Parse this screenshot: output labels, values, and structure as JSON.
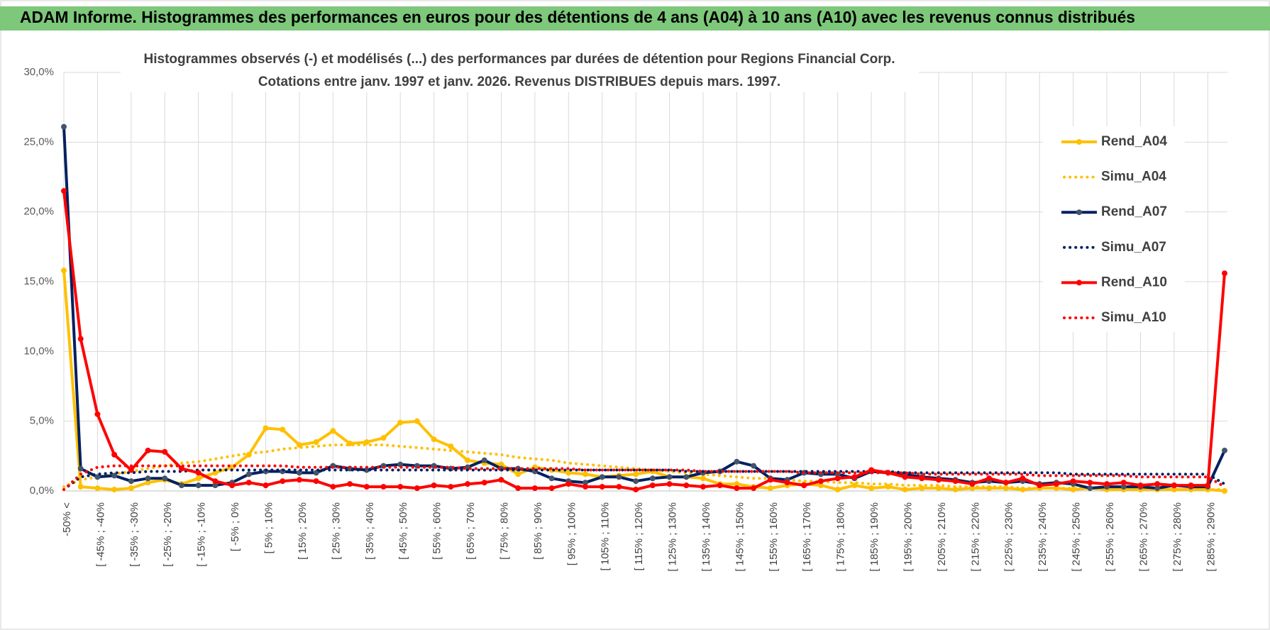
{
  "header": {
    "title": "ADAM Informe. Histogrammes des performances en euros pour des détentions de 4 ans (A04) à 10 ans (A10) avec les revenus connus distribués"
  },
  "chart_data": {
    "type": "line",
    "title": [
      "Histogrammes observés (-) et modélisés (...) des performances par durées de détention pour Regions Financial Corp.",
      "Cotations entre janv. 1997 et janv. 2026. Revenus DISTRIBUES depuis mars. 1997."
    ],
    "categories": [
      "-50% <",
      null,
      "[ -45% ; -40%",
      null,
      "[ -35% ; -30%",
      null,
      "[ -25% ; -20%",
      null,
      "[ -15% ; -10%",
      null,
      "[ -5% ; 0%",
      null,
      "[ 5% ; 10%",
      null,
      "[ 15% ; 20%",
      null,
      "[ 25% ; 30%",
      null,
      "[ 35% ; 40%",
      null,
      "[ 45% ; 50%",
      null,
      "[ 55% ; 60%",
      null,
      "[ 65% ; 70%",
      null,
      "[ 75% ; 80%",
      null,
      "[ 85% ; 90%",
      null,
      "[ 95% ; 100%",
      null,
      "[ 105% ; 110%",
      null,
      "[ 115% ; 120%",
      null,
      "[ 125% ; 130%",
      null,
      "[ 135% ; 140%",
      null,
      "[ 145% ; 150%",
      null,
      "[ 155% ; 160%",
      null,
      "[ 165% ; 170%",
      null,
      "[ 175% ; 180%",
      null,
      "[ 185% ; 190%",
      null,
      "[ 195% ; 200%",
      null,
      "[ 205% ; 210%",
      null,
      "[ 215% ; 220%",
      null,
      "[ 225% ; 230%",
      null,
      "[ 235% ; 240%",
      null,
      "[ 245% ; 250%",
      null,
      "[ 255% ; 260%",
      null,
      "[ 265% ; 270%",
      null,
      "[ 275% ; 280%",
      null,
      "[ 285% ; 290%",
      null
    ],
    "series": [
      {
        "name": "Rend_A04",
        "color": "#FFC000",
        "dash": "solid",
        "markers": true,
        "values": [
          15.8,
          0.3,
          0.2,
          0.1,
          0.2,
          0.6,
          0.8,
          0.5,
          0.9,
          1.3,
          1.7,
          2.6,
          4.5,
          4.4,
          3.3,
          3.5,
          4.3,
          3.4,
          3.5,
          3.8,
          4.9,
          5.0,
          3.7,
          3.2,
          2.2,
          2.0,
          1.9,
          1.2,
          1.7,
          1.5,
          1.3,
          1.2,
          1.0,
          1.1,
          1.2,
          1.4,
          1.0,
          1.0,
          0.9,
          0.5,
          0.5,
          0.3,
          0.2,
          0.4,
          0.5,
          0.4,
          0.1,
          0.4,
          0.2,
          0.3,
          0.1,
          0.2,
          0.2,
          0.1,
          0.2,
          0.2,
          0.2,
          0.1,
          0.2,
          0.2,
          0.1,
          0.2,
          0.1,
          0.1,
          0.1,
          0.1,
          0.1,
          0.1,
          0.1,
          0.0
        ]
      },
      {
        "name": "Simu_A04",
        "color": "#FFC000",
        "dash": "dotted",
        "markers": false,
        "values": [
          0.3,
          0.8,
          1.0,
          1.2,
          1.4,
          1.6,
          1.8,
          2.0,
          2.1,
          2.3,
          2.5,
          2.7,
          2.8,
          3.0,
          3.1,
          3.2,
          3.3,
          3.3,
          3.3,
          3.3,
          3.2,
          3.1,
          3.0,
          2.9,
          2.8,
          2.7,
          2.6,
          2.4,
          2.3,
          2.2,
          2.0,
          1.9,
          1.8,
          1.7,
          1.6,
          1.5,
          1.4,
          1.3,
          1.2,
          1.1,
          1.0,
          0.9,
          0.9,
          0.8,
          0.7,
          0.7,
          0.6,
          0.6,
          0.5,
          0.5,
          0.4,
          0.4,
          0.4,
          0.3,
          0.3,
          0.3,
          0.3,
          0.2,
          0.2,
          0.2,
          0.2,
          0.2,
          0.2,
          0.1,
          0.1,
          0.1,
          0.1,
          0.1,
          0.1,
          0.1
        ]
      },
      {
        "name": "Rend_A07",
        "color": "#002060",
        "dash": "solid",
        "markers": true,
        "marker_color": "#44546A",
        "values": [
          26.1,
          1.6,
          1.0,
          1.1,
          0.7,
          0.9,
          0.9,
          0.4,
          0.4,
          0.4,
          0.6,
          1.2,
          1.4,
          1.4,
          1.3,
          1.3,
          1.8,
          1.6,
          1.5,
          1.8,
          1.9,
          1.8,
          1.8,
          1.6,
          1.7,
          2.2,
          1.6,
          1.6,
          1.4,
          0.9,
          0.7,
          0.6,
          1.0,
          1.0,
          0.7,
          0.9,
          1.0,
          1.0,
          1.3,
          1.4,
          2.1,
          1.8,
          0.9,
          0.8,
          1.3,
          1.2,
          1.2,
          0.9,
          1.4,
          1.3,
          1.2,
          1.0,
          0.9,
          0.8,
          0.6,
          0.7,
          0.6,
          0.7,
          0.5,
          0.6,
          0.5,
          0.2,
          0.3,
          0.3,
          0.3,
          0.2,
          0.4,
          0.3,
          0.3,
          2.9
        ]
      },
      {
        "name": "Simu_A07",
        "color": "#002060",
        "dash": "dotted",
        "markers": false,
        "values": [
          0.1,
          1.0,
          1.2,
          1.3,
          1.3,
          1.4,
          1.4,
          1.4,
          1.5,
          1.5,
          1.5,
          1.5,
          1.5,
          1.5,
          1.5,
          1.5,
          1.5,
          1.5,
          1.5,
          1.5,
          1.5,
          1.5,
          1.5,
          1.5,
          1.5,
          1.5,
          1.5,
          1.5,
          1.5,
          1.5,
          1.5,
          1.5,
          1.5,
          1.5,
          1.5,
          1.5,
          1.5,
          1.4,
          1.4,
          1.4,
          1.4,
          1.4,
          1.4,
          1.4,
          1.4,
          1.4,
          1.4,
          1.4,
          1.4,
          1.4,
          1.3,
          1.3,
          1.3,
          1.3,
          1.3,
          1.3,
          1.3,
          1.3,
          1.3,
          1.3,
          1.2,
          1.2,
          1.2,
          1.2,
          1.2,
          1.2,
          1.2,
          1.2,
          1.2,
          0.5
        ]
      },
      {
        "name": "Rend_A10",
        "color": "#FF0000",
        "dash": "solid",
        "markers": true,
        "values": [
          21.5,
          10.9,
          5.5,
          2.6,
          1.5,
          2.9,
          2.8,
          1.6,
          1.3,
          0.7,
          0.4,
          0.6,
          0.4,
          0.7,
          0.8,
          0.7,
          0.3,
          0.5,
          0.3,
          0.3,
          0.3,
          0.2,
          0.4,
          0.3,
          0.5,
          0.6,
          0.8,
          0.2,
          0.2,
          0.2,
          0.5,
          0.3,
          0.3,
          0.3,
          0.1,
          0.4,
          0.5,
          0.4,
          0.3,
          0.4,
          0.2,
          0.2,
          0.8,
          0.6,
          0.4,
          0.7,
          0.9,
          1.0,
          1.5,
          1.3,
          1.0,
          0.9,
          0.8,
          0.7,
          0.5,
          0.9,
          0.6,
          0.9,
          0.4,
          0.5,
          0.7,
          0.6,
          0.5,
          0.6,
          0.4,
          0.5,
          0.4,
          0.4,
          0.4,
          15.6
        ]
      },
      {
        "name": "Simu_A10",
        "color": "#FF0000",
        "dash": "dotted",
        "markers": false,
        "values": [
          0.1,
          1.2,
          1.7,
          1.8,
          1.8,
          1.8,
          1.8,
          1.8,
          1.8,
          1.8,
          1.8,
          1.8,
          1.8,
          1.8,
          1.7,
          1.7,
          1.7,
          1.7,
          1.7,
          1.7,
          1.7,
          1.7,
          1.7,
          1.7,
          1.6,
          1.6,
          1.6,
          1.6,
          1.6,
          1.6,
          1.6,
          1.5,
          1.5,
          1.5,
          1.5,
          1.5,
          1.5,
          1.5,
          1.4,
          1.4,
          1.4,
          1.4,
          1.4,
          1.4,
          1.3,
          1.3,
          1.3,
          1.3,
          1.3,
          1.3,
          1.3,
          1.2,
          1.2,
          1.2,
          1.2,
          1.2,
          1.2,
          1.2,
          1.1,
          1.1,
          1.1,
          1.1,
          1.1,
          1.1,
          1.0,
          1.0,
          1.0,
          1.0,
          1.0,
          0.3
        ]
      }
    ],
    "ylim": [
      0,
      30
    ],
    "yticks": [
      {
        "value": 0,
        "label": "0,0%"
      },
      {
        "value": 5,
        "label": "5,0%"
      },
      {
        "value": 10,
        "label": "10,0%"
      },
      {
        "value": 15,
        "label": "15,0%"
      },
      {
        "value": 20,
        "label": "20,0%"
      },
      {
        "value": 25,
        "label": "25,0%"
      },
      {
        "value": 30,
        "label": "30,0%"
      }
    ],
    "grid": true,
    "legend": "right"
  }
}
